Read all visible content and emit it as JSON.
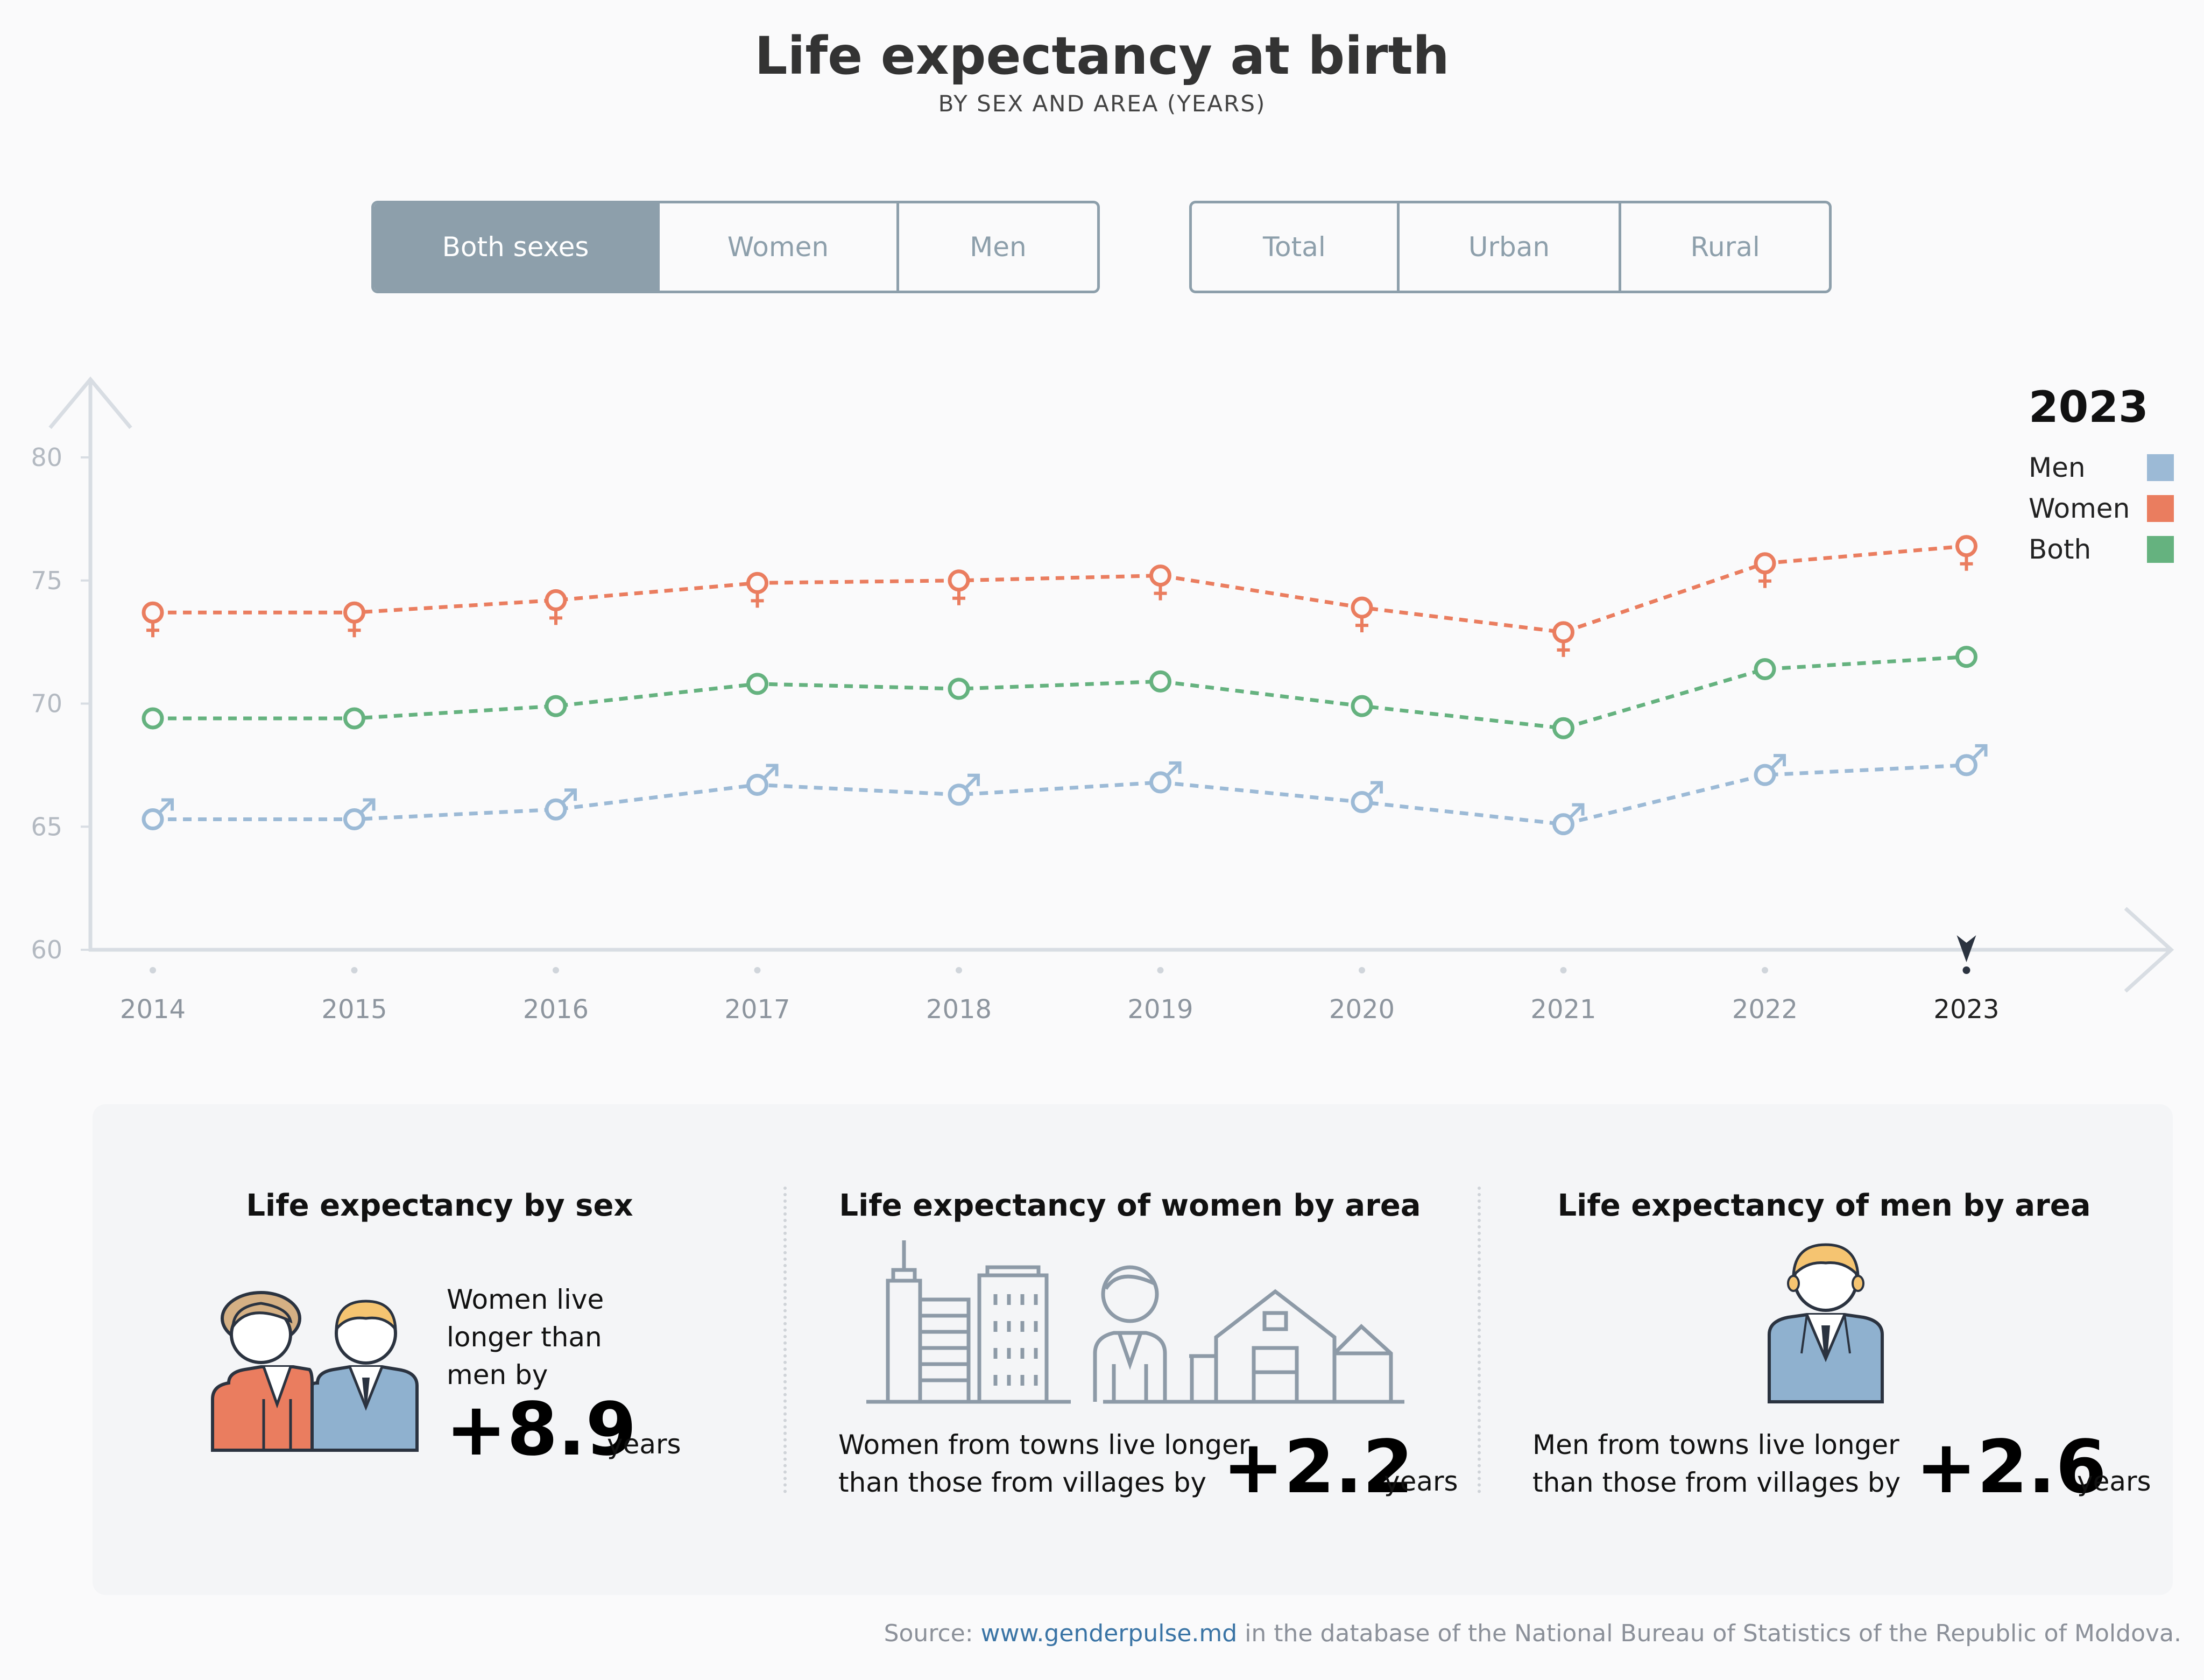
{
  "title": "Life expectancy at birth",
  "subtitle": "BY SEX AND AREA (YEARS)",
  "sex_filter": {
    "options": [
      "Both sexes",
      "Women",
      "Men"
    ],
    "selected": "Both sexes"
  },
  "area_filter": {
    "options": [
      "Total",
      "Urban",
      "Rural"
    ],
    "selected": ""
  },
  "legend": {
    "year": "2023",
    "items": [
      {
        "label": "Men",
        "color": "#9cbad6"
      },
      {
        "label": "Women",
        "color": "#ea7d5f"
      },
      {
        "label": "Both",
        "color": "#65b27f"
      }
    ]
  },
  "chart_data": {
    "type": "line",
    "title": "Life expectancy at birth",
    "x": [
      "2014",
      "2015",
      "2016",
      "2017",
      "2018",
      "2019",
      "2020",
      "2021",
      "2022",
      "2023"
    ],
    "ylim": [
      60,
      80
    ],
    "yticks": [
      "60",
      "65",
      "70",
      "75",
      "80"
    ],
    "selected_x": "2023",
    "series": [
      {
        "name": "Women",
        "color": "#ea7d5f",
        "marker": "female-symbol",
        "values": [
          73.7,
          73.7,
          74.2,
          74.9,
          75.0,
          75.2,
          73.9,
          72.9,
          75.7,
          76.4
        ]
      },
      {
        "name": "Both",
        "color": "#65b27f",
        "marker": "circle",
        "values": [
          69.4,
          69.4,
          69.9,
          70.8,
          70.6,
          70.9,
          69.9,
          69.0,
          71.4,
          71.9
        ]
      },
      {
        "name": "Men",
        "color": "#9cbad6",
        "marker": "male-symbol",
        "values": [
          65.3,
          65.3,
          65.7,
          66.7,
          66.3,
          66.8,
          66.0,
          65.1,
          67.1,
          67.5
        ]
      }
    ]
  },
  "cards": {
    "sex": {
      "title": "Life expectancy by sex",
      "text": [
        "Women live",
        "longer than",
        "men by"
      ],
      "value": "+8.9",
      "unit": "years"
    },
    "women_area": {
      "title": "Life expectancy of women by area",
      "text": [
        "Women from towns live longer",
        "than those from villages by"
      ],
      "value": "+2.2",
      "unit": "years"
    },
    "men_area": {
      "title": "Life expectancy of men by area",
      "text": [
        "Men from towns live longer",
        "than those from villages by"
      ],
      "value": "+2.6",
      "unit": "years"
    }
  },
  "source": {
    "prefix": "Source: ",
    "link": "www.genderpulse.md",
    "suffix": " in the database of the National Bureau of Statistics of the Republic of Moldova."
  }
}
